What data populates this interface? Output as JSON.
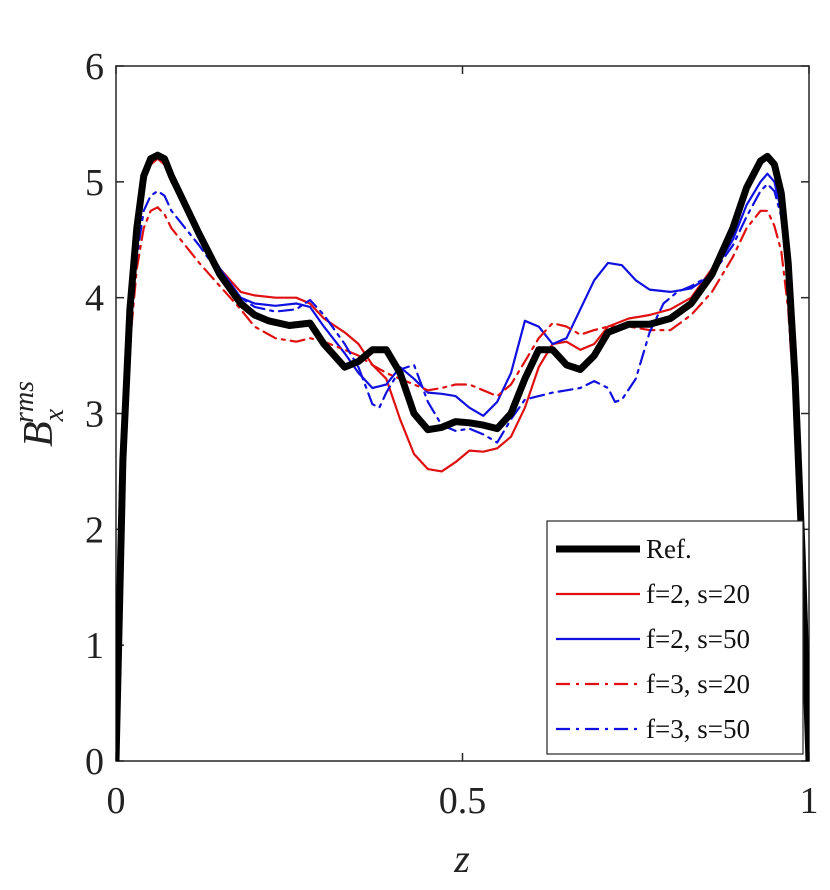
{
  "chart_data": {
    "type": "line",
    "xlabel": "z",
    "ylabel_base": "B",
    "ylabel_sub": "x",
    "ylabel_sup": "rms",
    "xlim": [
      0,
      1
    ],
    "ylim": [
      0,
      6
    ],
    "xticks": [
      0,
      0.5,
      1
    ],
    "xtick_labels": [
      "0",
      "0.5",
      "1"
    ],
    "yticks": [
      0,
      1,
      2,
      3,
      4,
      5,
      6
    ],
    "ytick_labels": [
      "0",
      "1",
      "2",
      "3",
      "4",
      "5",
      "6"
    ],
    "grid": false,
    "legend_position": "bottom-right",
    "series": [
      {
        "name": "Ref.",
        "color": "#000000",
        "style": "solid",
        "weight": "thick",
        "points": [
          [
            0,
            0
          ],
          [
            0.01,
            2.6
          ],
          [
            0.02,
            3.9
          ],
          [
            0.03,
            4.6
          ],
          [
            0.04,
            5.05
          ],
          [
            0.05,
            5.2
          ],
          [
            0.06,
            5.23
          ],
          [
            0.07,
            5.2
          ],
          [
            0.08,
            5.05
          ],
          [
            0.1,
            4.8
          ],
          [
            0.12,
            4.55
          ],
          [
            0.15,
            4.2
          ],
          [
            0.18,
            3.95
          ],
          [
            0.2,
            3.85
          ],
          [
            0.22,
            3.8
          ],
          [
            0.25,
            3.76
          ],
          [
            0.28,
            3.78
          ],
          [
            0.3,
            3.6
          ],
          [
            0.33,
            3.4
          ],
          [
            0.35,
            3.45
          ],
          [
            0.37,
            3.55
          ],
          [
            0.39,
            3.55
          ],
          [
            0.41,
            3.35
          ],
          [
            0.43,
            3.0
          ],
          [
            0.45,
            2.86
          ],
          [
            0.47,
            2.88
          ],
          [
            0.49,
            2.93
          ],
          [
            0.51,
            2.92
          ],
          [
            0.53,
            2.9
          ],
          [
            0.55,
            2.87
          ],
          [
            0.57,
            3.0
          ],
          [
            0.59,
            3.3
          ],
          [
            0.61,
            3.55
          ],
          [
            0.63,
            3.55
          ],
          [
            0.65,
            3.42
          ],
          [
            0.67,
            3.38
          ],
          [
            0.69,
            3.5
          ],
          [
            0.71,
            3.7
          ],
          [
            0.74,
            3.77
          ],
          [
            0.77,
            3.77
          ],
          [
            0.8,
            3.82
          ],
          [
            0.83,
            3.95
          ],
          [
            0.86,
            4.2
          ],
          [
            0.89,
            4.6
          ],
          [
            0.91,
            4.95
          ],
          [
            0.93,
            5.18
          ],
          [
            0.94,
            5.22
          ],
          [
            0.95,
            5.15
          ],
          [
            0.96,
            4.9
          ],
          [
            0.97,
            4.3
          ],
          [
            0.98,
            3.3
          ],
          [
            0.99,
            1.8
          ],
          [
            1.0,
            0
          ]
        ]
      },
      {
        "name": "f=2, s=20",
        "color": "#e01010",
        "style": "solid",
        "weight": "thin",
        "points": [
          [
            0,
            0
          ],
          [
            0.01,
            2.5
          ],
          [
            0.02,
            3.85
          ],
          [
            0.03,
            4.55
          ],
          [
            0.04,
            5.0
          ],
          [
            0.05,
            5.15
          ],
          [
            0.06,
            5.2
          ],
          [
            0.07,
            5.15
          ],
          [
            0.08,
            5.0
          ],
          [
            0.1,
            4.78
          ],
          [
            0.12,
            4.55
          ],
          [
            0.15,
            4.25
          ],
          [
            0.18,
            4.05
          ],
          [
            0.2,
            4.02
          ],
          [
            0.23,
            4.0
          ],
          [
            0.26,
            4.0
          ],
          [
            0.28,
            3.95
          ],
          [
            0.3,
            3.82
          ],
          [
            0.33,
            3.7
          ],
          [
            0.35,
            3.6
          ],
          [
            0.37,
            3.42
          ],
          [
            0.39,
            3.3
          ],
          [
            0.41,
            2.95
          ],
          [
            0.43,
            2.65
          ],
          [
            0.45,
            2.52
          ],
          [
            0.47,
            2.5
          ],
          [
            0.49,
            2.58
          ],
          [
            0.51,
            2.68
          ],
          [
            0.53,
            2.67
          ],
          [
            0.55,
            2.7
          ],
          [
            0.57,
            2.8
          ],
          [
            0.59,
            3.05
          ],
          [
            0.61,
            3.4
          ],
          [
            0.63,
            3.6
          ],
          [
            0.65,
            3.62
          ],
          [
            0.67,
            3.55
          ],
          [
            0.69,
            3.6
          ],
          [
            0.71,
            3.75
          ],
          [
            0.74,
            3.82
          ],
          [
            0.77,
            3.85
          ],
          [
            0.8,
            3.9
          ],
          [
            0.83,
            4.0
          ],
          [
            0.86,
            4.25
          ],
          [
            0.89,
            4.6
          ],
          [
            0.91,
            4.95
          ],
          [
            0.93,
            5.15
          ],
          [
            0.94,
            5.2
          ],
          [
            0.95,
            5.12
          ],
          [
            0.96,
            4.85
          ],
          [
            0.97,
            4.25
          ],
          [
            0.98,
            3.25
          ],
          [
            0.99,
            1.75
          ],
          [
            1.0,
            0
          ]
        ]
      },
      {
        "name": "f=2, s=50",
        "color": "#1010e0",
        "style": "solid",
        "weight": "thin",
        "points": [
          [
            0,
            0
          ],
          [
            0.01,
            2.55
          ],
          [
            0.02,
            3.9
          ],
          [
            0.03,
            4.6
          ],
          [
            0.04,
            5.05
          ],
          [
            0.05,
            5.2
          ],
          [
            0.06,
            5.23
          ],
          [
            0.07,
            5.18
          ],
          [
            0.08,
            5.02
          ],
          [
            0.1,
            4.8
          ],
          [
            0.12,
            4.55
          ],
          [
            0.15,
            4.25
          ],
          [
            0.18,
            4.0
          ],
          [
            0.2,
            3.95
          ],
          [
            0.23,
            3.93
          ],
          [
            0.26,
            3.95
          ],
          [
            0.28,
            3.92
          ],
          [
            0.3,
            3.75
          ],
          [
            0.33,
            3.52
          ],
          [
            0.35,
            3.35
          ],
          [
            0.37,
            3.22
          ],
          [
            0.39,
            3.25
          ],
          [
            0.41,
            3.4
          ],
          [
            0.43,
            3.3
          ],
          [
            0.45,
            3.18
          ],
          [
            0.47,
            3.17
          ],
          [
            0.49,
            3.15
          ],
          [
            0.51,
            3.05
          ],
          [
            0.53,
            2.98
          ],
          [
            0.55,
            3.1
          ],
          [
            0.57,
            3.35
          ],
          [
            0.59,
            3.8
          ],
          [
            0.61,
            3.75
          ],
          [
            0.63,
            3.6
          ],
          [
            0.65,
            3.65
          ],
          [
            0.67,
            3.9
          ],
          [
            0.69,
            4.15
          ],
          [
            0.71,
            4.3
          ],
          [
            0.73,
            4.28
          ],
          [
            0.75,
            4.15
          ],
          [
            0.77,
            4.07
          ],
          [
            0.8,
            4.05
          ],
          [
            0.83,
            4.08
          ],
          [
            0.86,
            4.2
          ],
          [
            0.89,
            4.5
          ],
          [
            0.91,
            4.8
          ],
          [
            0.93,
            5.0
          ],
          [
            0.94,
            5.07
          ],
          [
            0.95,
            5.0
          ],
          [
            0.96,
            4.75
          ],
          [
            0.97,
            4.2
          ],
          [
            0.98,
            3.2
          ],
          [
            0.99,
            1.7
          ],
          [
            1.0,
            0
          ]
        ]
      },
      {
        "name": "f=3, s=20",
        "color": "#e01010",
        "style": "dashdot",
        "weight": "thin",
        "points": [
          [
            0,
            0
          ],
          [
            0.01,
            2.3
          ],
          [
            0.02,
            3.6
          ],
          [
            0.03,
            4.25
          ],
          [
            0.04,
            4.6
          ],
          [
            0.05,
            4.75
          ],
          [
            0.06,
            4.78
          ],
          [
            0.07,
            4.72
          ],
          [
            0.08,
            4.6
          ],
          [
            0.1,
            4.45
          ],
          [
            0.12,
            4.3
          ],
          [
            0.15,
            4.1
          ],
          [
            0.18,
            3.9
          ],
          [
            0.2,
            3.75
          ],
          [
            0.23,
            3.65
          ],
          [
            0.26,
            3.62
          ],
          [
            0.28,
            3.65
          ],
          [
            0.3,
            3.62
          ],
          [
            0.33,
            3.55
          ],
          [
            0.35,
            3.5
          ],
          [
            0.37,
            3.42
          ],
          [
            0.39,
            3.35
          ],
          [
            0.41,
            3.3
          ],
          [
            0.43,
            3.25
          ],
          [
            0.45,
            3.2
          ],
          [
            0.47,
            3.22
          ],
          [
            0.49,
            3.25
          ],
          [
            0.51,
            3.25
          ],
          [
            0.53,
            3.2
          ],
          [
            0.55,
            3.15
          ],
          [
            0.57,
            3.25
          ],
          [
            0.59,
            3.45
          ],
          [
            0.61,
            3.65
          ],
          [
            0.63,
            3.78
          ],
          [
            0.65,
            3.75
          ],
          [
            0.67,
            3.68
          ],
          [
            0.69,
            3.72
          ],
          [
            0.71,
            3.75
          ],
          [
            0.74,
            3.75
          ],
          [
            0.77,
            3.72
          ],
          [
            0.8,
            3.72
          ],
          [
            0.83,
            3.85
          ],
          [
            0.86,
            4.05
          ],
          [
            0.89,
            4.35
          ],
          [
            0.91,
            4.6
          ],
          [
            0.93,
            4.75
          ],
          [
            0.94,
            4.75
          ],
          [
            0.95,
            4.62
          ],
          [
            0.96,
            4.4
          ],
          [
            0.97,
            3.9
          ],
          [
            0.98,
            3.0
          ],
          [
            0.99,
            1.6
          ],
          [
            1.0,
            0
          ]
        ]
      },
      {
        "name": "f=3, s=50",
        "color": "#1010e0",
        "style": "dashdot",
        "weight": "thin",
        "points": [
          [
            0,
            0
          ],
          [
            0.01,
            2.4
          ],
          [
            0.02,
            3.7
          ],
          [
            0.03,
            4.35
          ],
          [
            0.04,
            4.75
          ],
          [
            0.05,
            4.88
          ],
          [
            0.06,
            4.92
          ],
          [
            0.07,
            4.88
          ],
          [
            0.08,
            4.75
          ],
          [
            0.1,
            4.6
          ],
          [
            0.12,
            4.45
          ],
          [
            0.15,
            4.2
          ],
          [
            0.18,
            4.0
          ],
          [
            0.2,
            3.92
          ],
          [
            0.23,
            3.88
          ],
          [
            0.26,
            3.9
          ],
          [
            0.28,
            3.98
          ],
          [
            0.3,
            3.85
          ],
          [
            0.33,
            3.6
          ],
          [
            0.35,
            3.4
          ],
          [
            0.37,
            3.08
          ],
          [
            0.38,
            3.05
          ],
          [
            0.39,
            3.18
          ],
          [
            0.41,
            3.38
          ],
          [
            0.43,
            3.42
          ],
          [
            0.45,
            3.1
          ],
          [
            0.47,
            2.9
          ],
          [
            0.49,
            2.85
          ],
          [
            0.51,
            2.87
          ],
          [
            0.53,
            2.82
          ],
          [
            0.55,
            2.75
          ],
          [
            0.57,
            2.95
          ],
          [
            0.59,
            3.12
          ],
          [
            0.61,
            3.15
          ],
          [
            0.63,
            3.18
          ],
          [
            0.65,
            3.2
          ],
          [
            0.67,
            3.22
          ],
          [
            0.69,
            3.28
          ],
          [
            0.71,
            3.22
          ],
          [
            0.72,
            3.1
          ],
          [
            0.73,
            3.12
          ],
          [
            0.75,
            3.3
          ],
          [
            0.77,
            3.7
          ],
          [
            0.79,
            3.95
          ],
          [
            0.81,
            4.05
          ],
          [
            0.83,
            4.1
          ],
          [
            0.86,
            4.2
          ],
          [
            0.89,
            4.45
          ],
          [
            0.91,
            4.7
          ],
          [
            0.93,
            4.92
          ],
          [
            0.94,
            4.98
          ],
          [
            0.95,
            4.92
          ],
          [
            0.96,
            4.7
          ],
          [
            0.97,
            4.15
          ],
          [
            0.98,
            3.15
          ],
          [
            0.99,
            1.7
          ],
          [
            1.0,
            0
          ]
        ]
      }
    ]
  }
}
